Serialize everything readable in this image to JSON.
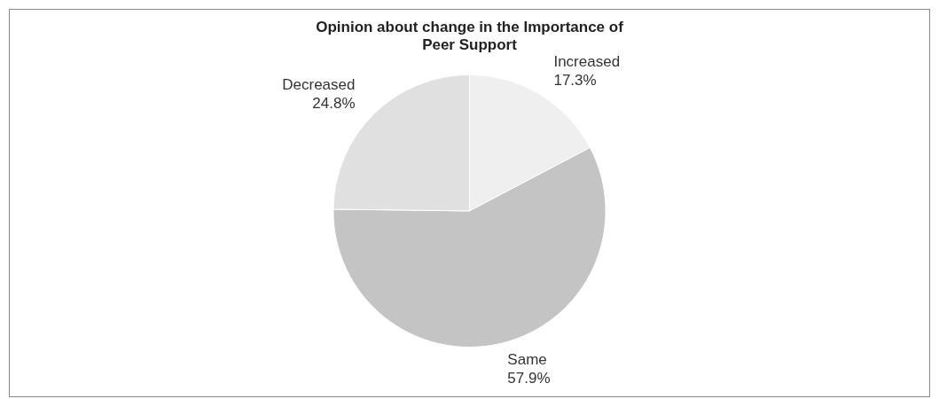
{
  "chart_data": {
    "type": "pie",
    "title": "Opinion about change in the Importance of Peer Support",
    "categories": [
      "Increased",
      "Same",
      "Decreased"
    ],
    "values": [
      17.3,
      57.9,
      24.8
    ],
    "value_labels": [
      "17.3%",
      "57.9%",
      "24.8%"
    ],
    "colors": [
      "#efefef",
      "#c4c4c4",
      "#e0e0e0"
    ],
    "legend": false
  }
}
